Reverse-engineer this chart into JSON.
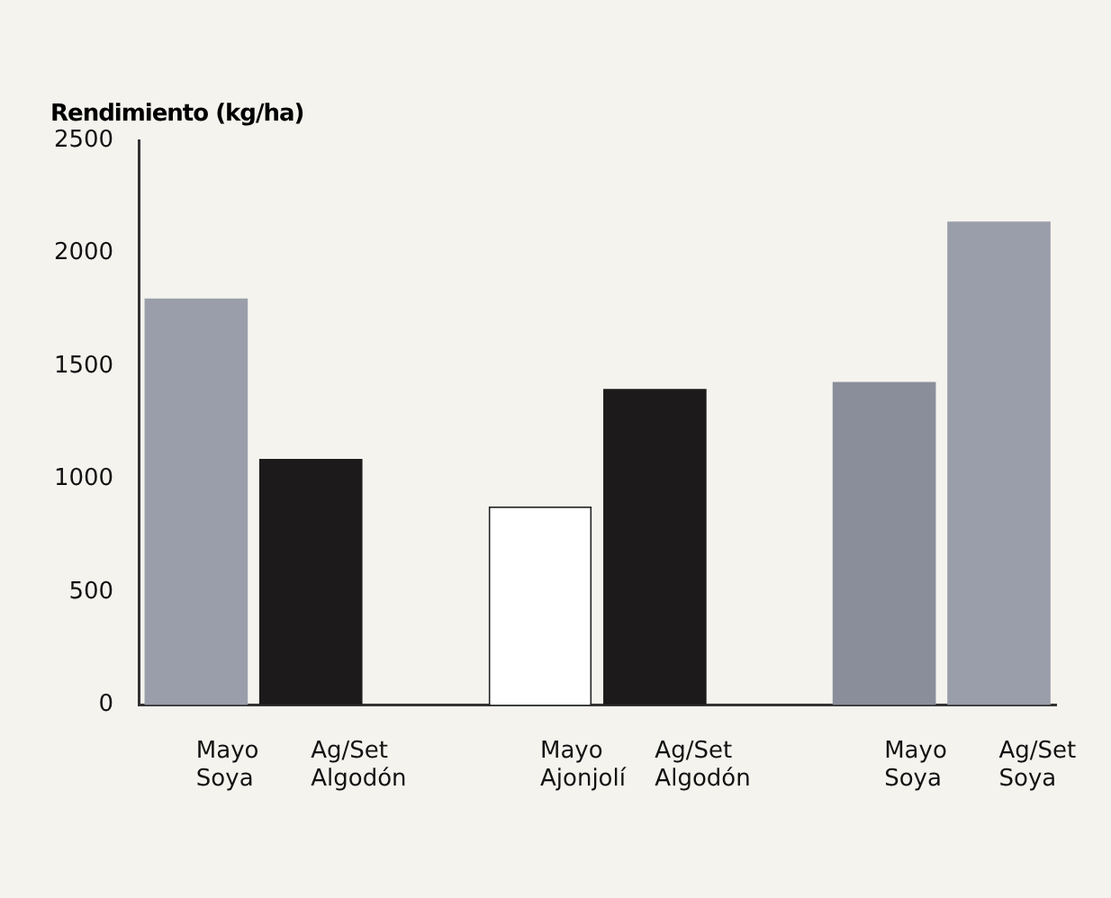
{
  "chart_data": {
    "type": "bar",
    "ylabel": "Rendimiento (kg/ha)",
    "categories": [
      "Mayo Soya",
      "Ag/Set Algodón",
      null,
      "Mayo Ajonjolí",
      "Ag/Set Algodón",
      null,
      "Mayo Soya",
      "Ag/Set Soya"
    ],
    "values": [
      1800,
      1090,
      null,
      880,
      1400,
      null,
      1430,
      2140
    ],
    "colors": [
      "#9a9eaa",
      "#1c1a1a",
      "#ffffff",
      "#ffffff",
      "#1c1a1a",
      "#ffffff",
      "#8a8e9a",
      "#9a9eaa"
    ],
    "ylim": [
      0,
      2500
    ],
    "yticks": [
      0,
      500,
      1000,
      1500,
      2000,
      2500
    ],
    "grid": false,
    "legend": false
  }
}
